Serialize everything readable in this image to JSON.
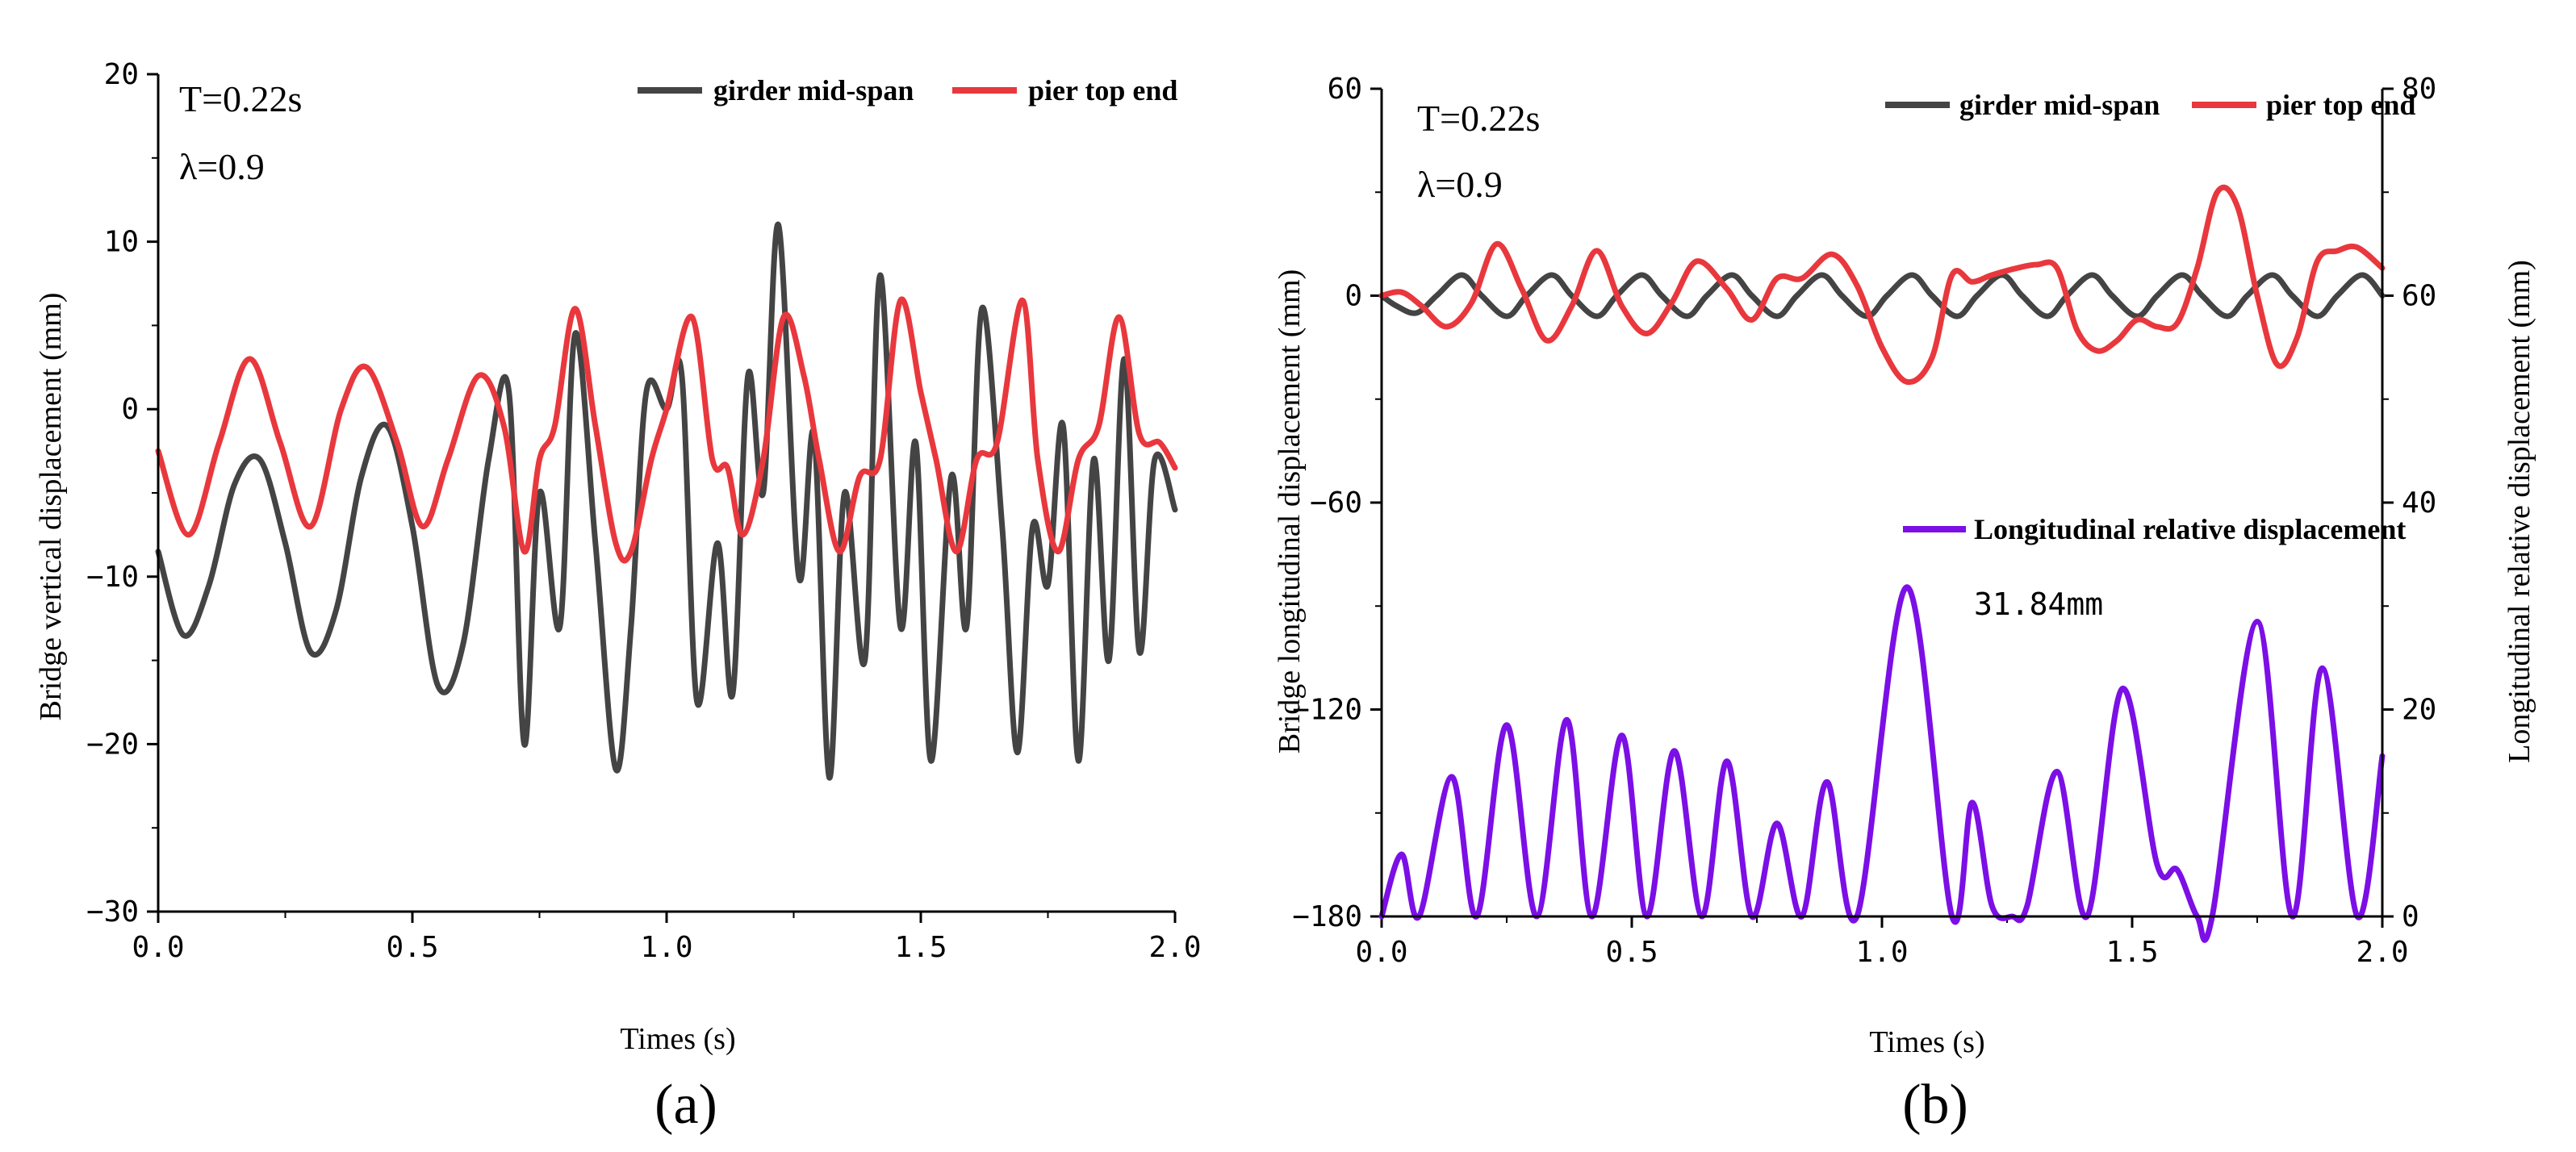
{
  "chart_data": [
    {
      "id": "a",
      "type": "line",
      "caption": "(a)",
      "xlabel": "Times (s)",
      "ylabel": "Bridge vertical displacement (mm)",
      "xlim": [
        0,
        2.0
      ],
      "ylim": [
        -30,
        20
      ],
      "xticks": [
        0,
        0.5,
        1.0,
        1.5,
        2.0
      ],
      "xtick_labels": [
        "0.0",
        "0.5",
        "1.0",
        "1.5",
        "2.0"
      ],
      "yticks": [
        -30,
        -20,
        -10,
        0,
        10,
        20
      ],
      "ytick_labels": [
        "−30",
        "−20",
        "−10",
        "0",
        "10",
        "20"
      ],
      "annotations": [
        "T=0.22s",
        "λ=0.9"
      ],
      "legend": [
        "girder mid-span",
        "pier top end"
      ],
      "series": [
        {
          "name": "girder mid-span",
          "color": "#444444",
          "x": [
            0.0,
            0.05,
            0.1,
            0.15,
            0.2,
            0.25,
            0.3,
            0.35,
            0.4,
            0.45,
            0.5,
            0.55,
            0.6,
            0.65,
            0.69,
            0.72,
            0.75,
            0.79,
            0.82,
            0.86,
            0.9,
            0.93,
            0.96,
            1.0,
            1.03,
            1.06,
            1.1,
            1.13,
            1.16,
            1.19,
            1.22,
            1.26,
            1.29,
            1.32,
            1.35,
            1.39,
            1.42,
            1.46,
            1.49,
            1.52,
            1.56,
            1.59,
            1.62,
            1.66,
            1.69,
            1.72,
            1.75,
            1.78,
            1.81,
            1.84,
            1.87,
            1.9,
            1.93,
            1.96,
            2.0
          ],
          "y": [
            -8.5,
            -13.5,
            -10.5,
            -4.5,
            -3,
            -8,
            -14.5,
            -12,
            -4,
            -1,
            -7,
            -16.5,
            -14,
            -3,
            1,
            -20,
            -5,
            -13,
            4.5,
            -8,
            -21.5,
            -13,
            1,
            0,
            2,
            -17.5,
            -8,
            -17,
            2,
            -5,
            11,
            -10,
            -1.5,
            -22,
            -5,
            -15,
            8,
            -13,
            -2,
            -21,
            -4,
            -13,
            6,
            -7,
            -20.5,
            -7,
            -10.5,
            -1,
            -21,
            -3,
            -15,
            3,
            -14.5,
            -3,
            -6
          ]
        },
        {
          "name": "pier top end",
          "color": "#e8383d",
          "x": [
            0.0,
            0.06,
            0.12,
            0.18,
            0.24,
            0.3,
            0.36,
            0.41,
            0.47,
            0.52,
            0.57,
            0.63,
            0.68,
            0.72,
            0.75,
            0.78,
            0.82,
            0.86,
            0.9,
            0.93,
            0.97,
            1.0,
            1.05,
            1.09,
            1.12,
            1.15,
            1.19,
            1.23,
            1.27,
            1.3,
            1.34,
            1.38,
            1.42,
            1.46,
            1.5,
            1.53,
            1.57,
            1.61,
            1.65,
            1.7,
            1.73,
            1.77,
            1.81,
            1.85,
            1.89,
            1.93,
            1.97,
            2.0
          ],
          "y": [
            -2.5,
            -7.5,
            -2,
            3,
            -2,
            -7,
            0,
            2.5,
            -2,
            -7,
            -3,
            2,
            -1,
            -8.5,
            -3,
            -1,
            6,
            -1,
            -8,
            -8.5,
            -3,
            0,
            5.5,
            -3,
            -3.5,
            -7.5,
            -3,
            5.5,
            2,
            -3,
            -8.5,
            -4,
            -3,
            6.5,
            1,
            -3,
            -8.5,
            -3,
            -2,
            6.5,
            -3,
            -8.5,
            -3,
            -1,
            5.5,
            -1.5,
            -2,
            -3.5
          ]
        }
      ]
    },
    {
      "id": "b",
      "type": "line",
      "caption": "(b)",
      "xlabel": "Times (s)",
      "ylabel": "Bridge longitudinal displacement (mm)",
      "y2label": "Longitudinal relative displacement (mm)",
      "xlim": [
        0,
        2.0
      ],
      "ylim": [
        -180,
        60
      ],
      "y2lim": [
        0,
        80
      ],
      "xticks": [
        0,
        0.5,
        1.0,
        1.5,
        2.0
      ],
      "xtick_labels": [
        "0.0",
        "0.5",
        "1.0",
        "1.5",
        "2.0"
      ],
      "yticks": [
        -180,
        -120,
        -60,
        0,
        60
      ],
      "ytick_labels": [
        "−180",
        "−120",
        "−60",
        "0",
        "60"
      ],
      "y2ticks": [
        0,
        20,
        40,
        60,
        80
      ],
      "y2tick_labels": [
        "0",
        "20",
        "40",
        "60",
        "80"
      ],
      "annotations": [
        "T=0.22s",
        "λ=0.9"
      ],
      "peak_label": "31.84mm",
      "peak": {
        "x": 1.05,
        "y": 31.84
      },
      "legend": [
        "girder mid-span",
        "pier top end",
        "Longitudinal relative displacement"
      ],
      "series": [
        {
          "name": "girder mid-span",
          "color": "#444444",
          "axis": "left",
          "x": [
            0.0,
            0.03,
            0.07,
            0.11,
            0.16,
            0.2,
            0.25,
            0.29,
            0.34,
            0.38,
            0.43,
            0.47,
            0.52,
            0.56,
            0.61,
            0.65,
            0.7,
            0.74,
            0.79,
            0.83,
            0.88,
            0.92,
            0.97,
            1.01,
            1.06,
            1.1,
            1.15,
            1.19,
            1.24,
            1.28,
            1.33,
            1.37,
            1.42,
            1.46,
            1.51,
            1.55,
            1.6,
            1.64,
            1.69,
            1.73,
            1.78,
            1.82,
            1.87,
            1.91,
            1.96,
            2.0
          ],
          "y": [
            0,
            -3,
            -5,
            0,
            6,
            0,
            -6,
            0,
            6,
            0,
            -6,
            0,
            6,
            0,
            -6,
            0,
            6,
            0,
            -6,
            0,
            6,
            0,
            -6,
            0,
            6,
            0,
            -6,
            0,
            6,
            0,
            -6,
            0,
            6,
            0,
            -6,
            0,
            6,
            0,
            -6,
            0,
            6,
            0,
            -6,
            0,
            6,
            0
          ]
        },
        {
          "name": "pier top end",
          "color": "#e8383d",
          "axis": "left",
          "x": [
            0.0,
            0.04,
            0.08,
            0.13,
            0.18,
            0.23,
            0.28,
            0.33,
            0.38,
            0.43,
            0.48,
            0.53,
            0.58,
            0.63,
            0.69,
            0.74,
            0.79,
            0.84,
            0.9,
            0.95,
            1.0,
            1.05,
            1.1,
            1.14,
            1.18,
            1.22,
            1.27,
            1.31,
            1.35,
            1.39,
            1.43,
            1.47,
            1.51,
            1.55,
            1.59,
            1.63,
            1.67,
            1.71,
            1.75,
            1.79,
            1.83,
            1.87,
            1.91,
            1.95,
            2.0
          ],
          "y": [
            0,
            1,
            -3,
            -9,
            -2,
            15,
            2,
            -13,
            -3,
            13,
            -3,
            -11,
            -2,
            10,
            2,
            -7,
            5,
            5,
            12,
            3,
            -15,
            -25,
            -18,
            6,
            4,
            6,
            8,
            9,
            8,
            -10,
            -16,
            -13,
            -7,
            -9,
            -8,
            8,
            30,
            26,
            0,
            -20,
            -12,
            10,
            13,
            14,
            8
          ]
        },
        {
          "name": "Longitudinal relative displacement",
          "color": "#7b0fe6",
          "axis": "right",
          "x": [
            0.0,
            0.04,
            0.075,
            0.14,
            0.19,
            0.25,
            0.31,
            0.37,
            0.42,
            0.48,
            0.53,
            0.585,
            0.64,
            0.69,
            0.74,
            0.79,
            0.84,
            0.89,
            0.95,
            1.05,
            1.14,
            1.18,
            1.22,
            1.26,
            1.29,
            1.35,
            1.41,
            1.48,
            1.55,
            1.59,
            1.63,
            1.66,
            1.75,
            1.82,
            1.88,
            1.95,
            2.0
          ],
          "y": [
            0,
            6,
            0,
            13.5,
            0,
            18.5,
            0,
            19,
            0,
            17.5,
            0,
            16,
            0,
            15,
            0,
            9,
            0,
            13,
            0,
            31.84,
            0,
            11,
            1,
            0,
            1,
            14,
            0,
            22,
            5,
            4.5,
            0,
            0,
            28.5,
            0,
            24,
            0,
            15.5
          ]
        }
      ]
    }
  ]
}
